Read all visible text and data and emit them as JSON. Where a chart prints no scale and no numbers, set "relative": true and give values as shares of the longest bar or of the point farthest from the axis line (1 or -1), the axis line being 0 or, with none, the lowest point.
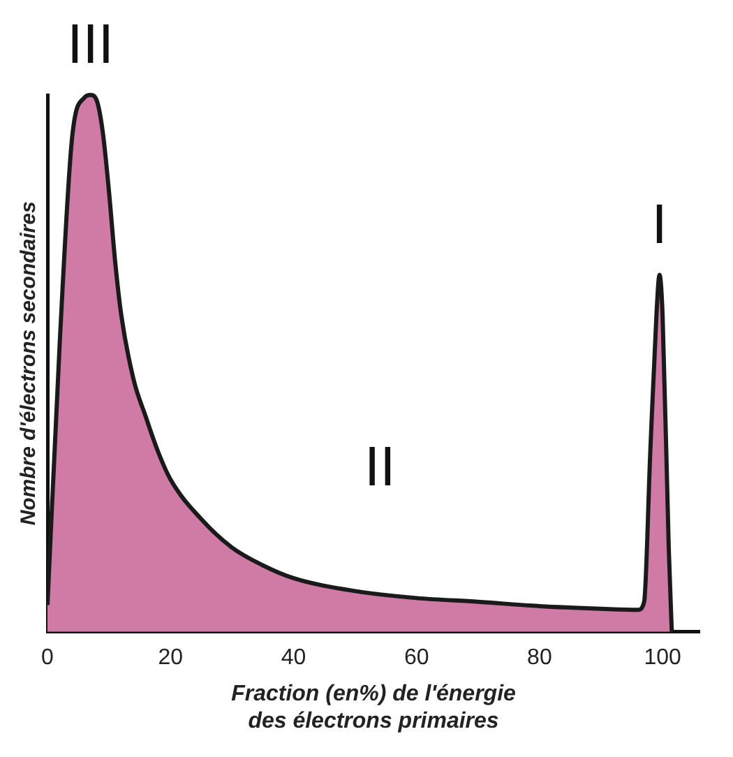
{
  "chart_data": {
    "type": "area",
    "relative": true,
    "xlabel": "Fraction (en%) de l'énergie\ndes électrons primaires",
    "ylabel": "Nombre d'électrons secondaires",
    "xlim": [
      0,
      106
    ],
    "xticks": [
      0,
      20,
      40,
      60,
      80,
      100
    ],
    "grid": false,
    "legend": false,
    "marker": "none",
    "annotations": [
      {
        "text": "III",
        "x": 7,
        "y": 1
      },
      "II",
      {
        "text": "I",
        "x": 99.5,
        "y": 0.665
      }
    ],
    "series": [
      {
        "color": "#d07aa6",
        "x": [
          0,
          2,
          4,
          6,
          7,
          8,
          9,
          10,
          11,
          12,
          14,
          16,
          18,
          20,
          25,
          30,
          35,
          40,
          50,
          60,
          70,
          80,
          90,
          96,
          97,
          98,
          99,
          99.5,
          100,
          101,
          101.5
        ],
        "values": [
          0.05,
          0.54,
          0.92,
          0.995,
          1,
          0.99,
          0.93,
          0.82,
          0.69,
          0.59,
          0.47,
          0.4,
          0.335,
          0.284,
          0.21,
          0.157,
          0.124,
          0.1,
          0.076,
          0.063,
          0.056,
          0.048,
          0.043,
          0.041,
          0.056,
          0.335,
          0.59,
          0.665,
          0.59,
          0.157,
          0
        ]
      }
    ]
  }
}
